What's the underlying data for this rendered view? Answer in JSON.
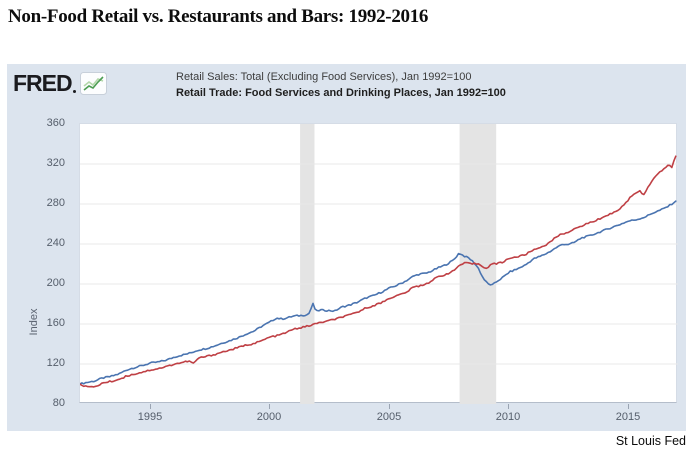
{
  "page": {
    "title": "Non-Food Retail vs. Restaurants and Bars: 1992-2016",
    "attribution": "St Louis Fed"
  },
  "fred": {
    "logo_text": "FRED",
    "logo_icon": "fred-sparkline-icon"
  },
  "legend": {
    "items": [
      {
        "label": "Retail Sales: Total (Excluding Food Services), Jan 1992=100",
        "color": "#4a74b0"
      },
      {
        "label": "Retail Trade: Food Services and Drinking Places, Jan 1992=100",
        "color": "#bf4045"
      }
    ]
  },
  "colors": {
    "panel_bg": "#dce4ee",
    "plot_bg": "#ffffff",
    "gridline": "#e9e9e9",
    "recession_band": "#e4e4e4",
    "tick_text": "#555e6b",
    "series_blue": "#4a74b0",
    "series_red": "#bf4045"
  },
  "chart_data": {
    "type": "line",
    "title": "Non-Food Retail vs. Restaurants and Bars: 1992-2016",
    "xlabel": "",
    "ylabel": "Index",
    "xlim": [
      1992.05,
      2017.05
    ],
    "ylim": [
      80,
      360
    ],
    "x_ticks": [
      1995,
      2000,
      2005,
      2010,
      2015
    ],
    "y_ticks": [
      80,
      120,
      160,
      200,
      240,
      280,
      320,
      360
    ],
    "grid": true,
    "legend_position": "top",
    "recession_bands": [
      [
        2001.25,
        2001.85
      ],
      [
        2007.92,
        2009.45
      ]
    ],
    "series": [
      {
        "name": "Retail Sales: Total (Excluding Food Services), Jan 1992=100",
        "color": "#4a74b0",
        "points": [
          [
            1992.04,
            100
          ],
          [
            1992.33,
            101.5
          ],
          [
            1992.67,
            103
          ],
          [
            1993,
            106
          ],
          [
            1993.33,
            107.5
          ],
          [
            1993.67,
            110
          ],
          [
            1994,
            114
          ],
          [
            1994.33,
            116.5
          ],
          [
            1994.67,
            118.5
          ],
          [
            1995,
            121
          ],
          [
            1995.33,
            122
          ],
          [
            1995.67,
            124
          ],
          [
            1996,
            127
          ],
          [
            1996.33,
            129
          ],
          [
            1996.67,
            131
          ],
          [
            1997,
            134
          ],
          [
            1997.33,
            135.5
          ],
          [
            1997.67,
            138
          ],
          [
            1998,
            141
          ],
          [
            1998.33,
            143.5
          ],
          [
            1998.67,
            146.5
          ],
          [
            1999,
            150
          ],
          [
            1999.33,
            153
          ],
          [
            1999.67,
            158
          ],
          [
            2000,
            162
          ],
          [
            2000.25,
            166
          ],
          [
            2000.5,
            165
          ],
          [
            2000.75,
            166.5
          ],
          [
            2001,
            168
          ],
          [
            2001.3,
            168.5
          ],
          [
            2001.6,
            169.5
          ],
          [
            2001.79,
            180
          ],
          [
            2001.92,
            172.5
          ],
          [
            2002.1,
            174
          ],
          [
            2002.4,
            173.5
          ],
          [
            2002.7,
            173
          ],
          [
            2003,
            177
          ],
          [
            2003.33,
            179
          ],
          [
            2003.67,
            182
          ],
          [
            2004,
            186
          ],
          [
            2004.33,
            188.5
          ],
          [
            2004.67,
            192
          ],
          [
            2005,
            196
          ],
          [
            2005.33,
            199
          ],
          [
            2005.67,
            203
          ],
          [
            2006,
            208
          ],
          [
            2006.25,
            210
          ],
          [
            2006.5,
            210.5
          ],
          [
            2006.75,
            213
          ],
          [
            2007,
            216
          ],
          [
            2007.33,
            219
          ],
          [
            2007.67,
            224
          ],
          [
            2007.9,
            231
          ],
          [
            2008.1,
            228
          ],
          [
            2008.3,
            226
          ],
          [
            2008.5,
            222
          ],
          [
            2008.7,
            216
          ],
          [
            2008.9,
            206
          ],
          [
            2009.1,
            200
          ],
          [
            2009.3,
            199
          ],
          [
            2009.5,
            203
          ],
          [
            2009.75,
            207
          ],
          [
            2010,
            212
          ],
          [
            2010.33,
            215
          ],
          [
            2010.67,
            219
          ],
          [
            2011,
            225
          ],
          [
            2011.33,
            228
          ],
          [
            2011.67,
            232
          ],
          [
            2012,
            237
          ],
          [
            2012.25,
            240
          ],
          [
            2012.5,
            239.5
          ],
          [
            2012.75,
            242
          ],
          [
            2013,
            246
          ],
          [
            2013.33,
            248
          ],
          [
            2013.67,
            251
          ],
          [
            2014,
            254
          ],
          [
            2014.33,
            257
          ],
          [
            2014.67,
            260
          ],
          [
            2015,
            263
          ],
          [
            2015.33,
            264.5
          ],
          [
            2015.67,
            267
          ],
          [
            2016,
            271
          ],
          [
            2016.33,
            274
          ],
          [
            2016.67,
            278
          ],
          [
            2016.96,
            283
          ]
        ]
      },
      {
        "name": "Retail Trade: Food Services and Drinking Places, Jan 1992=100",
        "color": "#bf4045",
        "points": [
          [
            1992.04,
            100
          ],
          [
            1992.25,
            98
          ],
          [
            1992.5,
            96.5
          ],
          [
            1992.75,
            98
          ],
          [
            1993,
            101
          ],
          [
            1993.33,
            102.5
          ],
          [
            1993.67,
            104.5
          ],
          [
            1994,
            108
          ],
          [
            1994.33,
            110
          ],
          [
            1994.67,
            112
          ],
          [
            1995,
            114
          ],
          [
            1995.33,
            115.5
          ],
          [
            1995.67,
            117.5
          ],
          [
            1996,
            120
          ],
          [
            1996.33,
            121.5
          ],
          [
            1996.6,
            123
          ],
          [
            1996.8,
            120.5
          ],
          [
            1997,
            126
          ],
          [
            1997.33,
            127.5
          ],
          [
            1997.67,
            129.5
          ],
          [
            1998,
            132
          ],
          [
            1998.33,
            134
          ],
          [
            1998.67,
            136.5
          ],
          [
            1999,
            139
          ],
          [
            1999.33,
            140.5
          ],
          [
            1999.67,
            143.5
          ],
          [
            2000,
            147
          ],
          [
            2000.33,
            148.5
          ],
          [
            2000.67,
            151.5
          ],
          [
            2001,
            155
          ],
          [
            2001.33,
            156.5
          ],
          [
            2001.67,
            158.5
          ],
          [
            2002,
            161
          ],
          [
            2002.33,
            162.5
          ],
          [
            2002.67,
            164.5
          ],
          [
            2003,
            167
          ],
          [
            2003.33,
            169
          ],
          [
            2003.67,
            172
          ],
          [
            2004,
            176
          ],
          [
            2004.33,
            178.5
          ],
          [
            2004.67,
            181.5
          ],
          [
            2005,
            186
          ],
          [
            2005.33,
            188.5
          ],
          [
            2005.67,
            191.5
          ],
          [
            2006,
            197
          ],
          [
            2006.33,
            198.5
          ],
          [
            2006.67,
            202
          ],
          [
            2007,
            207
          ],
          [
            2007.33,
            209.5
          ],
          [
            2007.67,
            213
          ],
          [
            2007.92,
            219
          ],
          [
            2008.17,
            221
          ],
          [
            2008.42,
            220
          ],
          [
            2008.67,
            220.5
          ],
          [
            2008.92,
            217
          ],
          [
            2009.08,
            216
          ],
          [
            2009.25,
            220
          ],
          [
            2009.5,
            220.5
          ],
          [
            2009.75,
            222
          ],
          [
            2010,
            226
          ],
          [
            2010.33,
            227
          ],
          [
            2010.67,
            229.5
          ],
          [
            2011,
            234
          ],
          [
            2011.33,
            237
          ],
          [
            2011.67,
            241
          ],
          [
            2012,
            248
          ],
          [
            2012.33,
            251
          ],
          [
            2012.67,
            254
          ],
          [
            2013,
            258
          ],
          [
            2013.33,
            261
          ],
          [
            2013.67,
            264
          ],
          [
            2014,
            268
          ],
          [
            2014.33,
            271
          ],
          [
            2014.67,
            276
          ],
          [
            2015,
            285
          ],
          [
            2015.25,
            291
          ],
          [
            2015.45,
            293
          ],
          [
            2015.6,
            289
          ],
          [
            2015.75,
            295
          ],
          [
            2016,
            305
          ],
          [
            2016.2,
            310
          ],
          [
            2016.4,
            314
          ],
          [
            2016.55,
            317
          ],
          [
            2016.7,
            319
          ],
          [
            2016.78,
            315
          ],
          [
            2016.88,
            324
          ],
          [
            2016.96,
            328
          ]
        ]
      }
    ]
  }
}
